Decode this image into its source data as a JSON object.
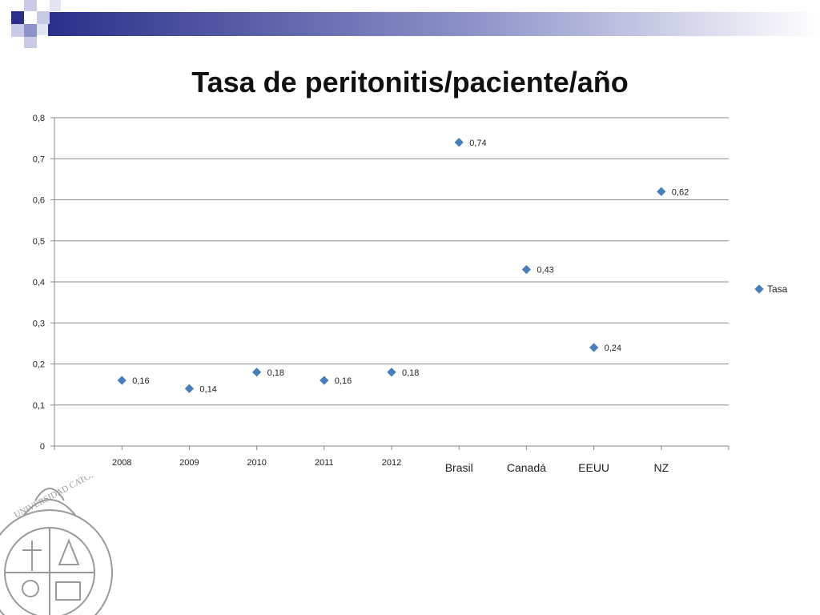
{
  "slide": {
    "title": "Tasa de peritonitis/paciente/año",
    "header_colors": [
      "#2b2f8a",
      "#8d92c8",
      "#c9cbe6"
    ],
    "seal_icon": "university-seal-icon",
    "seal_text": "UNIVERSIDAD CATÓLICA"
  },
  "chart_data": {
    "type": "scatter",
    "categories": [
      "2008",
      "2009",
      "2010",
      "2011",
      "2012",
      "Brasil",
      "Canadá",
      "EEUU",
      "NZ"
    ],
    "series": [
      {
        "name": "Tasa",
        "values": [
          0.16,
          0.14,
          0.18,
          0.16,
          0.18,
          0.74,
          0.43,
          0.24,
          0.62
        ],
        "color": "#4a7ebb"
      }
    ],
    "data_labels": [
      "0,16",
      "0,14",
      "0,18",
      "0,16",
      "0,18",
      "0,74",
      "0,43",
      "0,24",
      "0,62"
    ],
    "y_ticks": [
      "0",
      "0,1",
      "0,2",
      "0,3",
      "0,4",
      "0,5",
      "0,6",
      "0,7",
      "0,8"
    ],
    "ylim": [
      0,
      0.8
    ],
    "grid": true,
    "legend_position": "right",
    "title": "Tasa de peritonitis/paciente/año",
    "xlabel": "",
    "ylabel": ""
  }
}
